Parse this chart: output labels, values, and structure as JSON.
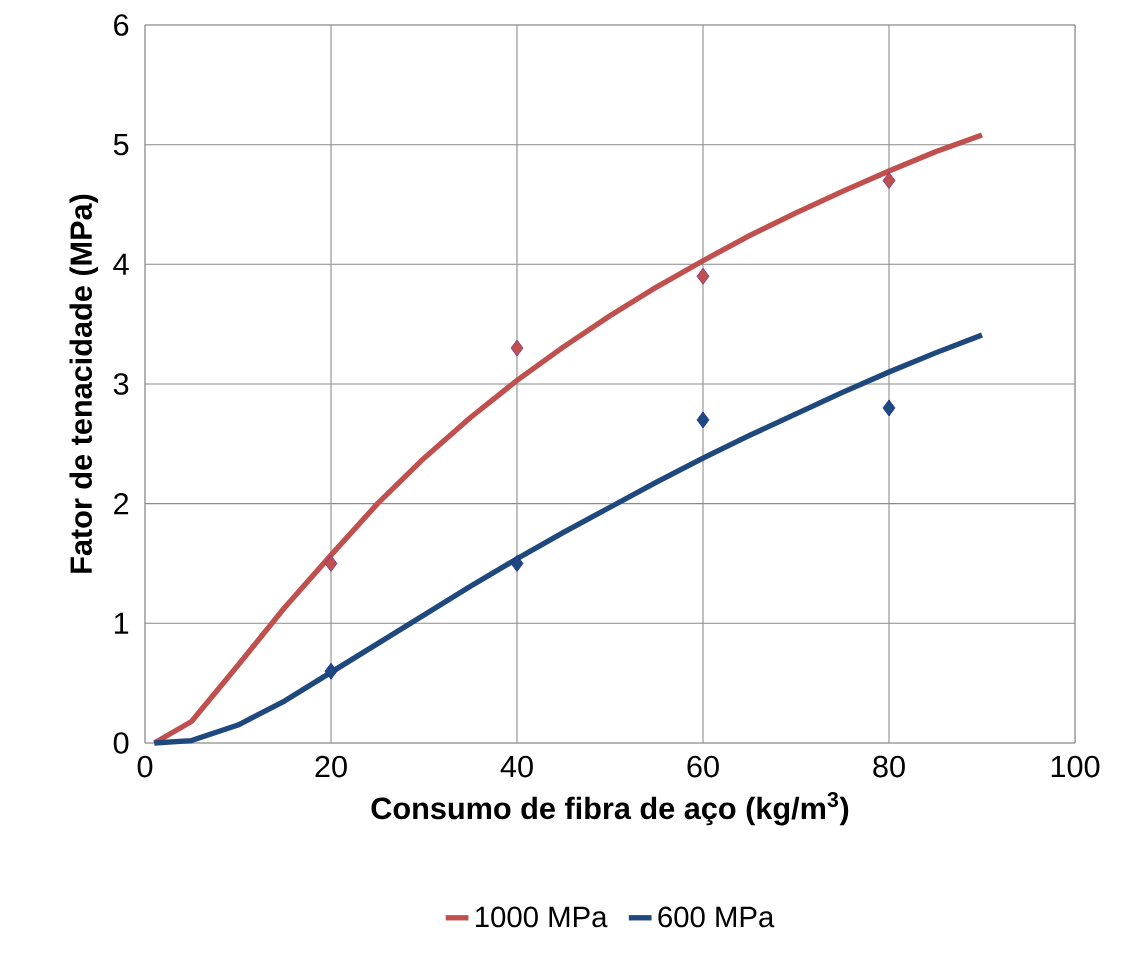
{
  "chart_data": {
    "type": "line",
    "xlabel": "Consumo de fibra de aço (kg/m$^{3}$)",
    "ylabel": "Fator de tenacidade (MPa)",
    "xlim": [
      0,
      100
    ],
    "xticks": [
      0,
      20,
      40,
      60,
      80,
      100
    ],
    "ylim": [
      0,
      6
    ],
    "yticks": [
      0,
      1,
      2,
      3,
      4,
      5,
      6
    ],
    "grid": true,
    "legend": "bottom",
    "line_style": "solid",
    "series": [
      {
        "name": "1000 MPa",
        "color": "#c0504d",
        "marker": "none",
        "x": [
          1,
          5,
          10,
          15,
          20,
          25,
          30,
          35,
          40,
          45,
          50,
          55,
          60,
          65,
          70,
          75,
          80,
          85,
          90
        ],
        "values": [
          0,
          0.18,
          0.65,
          1.13,
          1.57,
          2.0,
          2.38,
          2.72,
          3.03,
          3.31,
          3.57,
          3.81,
          4.03,
          4.24,
          4.43,
          4.61,
          4.78,
          4.94,
          5.08
        ]
      },
      {
        "name": "600 MPa",
        "color": "#1f497d",
        "marker": "none",
        "x": [
          1,
          5,
          10,
          15,
          20,
          25,
          30,
          35,
          40,
          45,
          50,
          55,
          60,
          65,
          70,
          75,
          80,
          85,
          90
        ],
        "values": [
          0,
          0.02,
          0.15,
          0.35,
          0.59,
          0.83,
          1.07,
          1.31,
          1.54,
          1.76,
          1.97,
          2.18,
          2.38,
          2.57,
          2.75,
          2.93,
          3.1,
          3.26,
          3.41
        ]
      },
      {
        "type": "scatter",
        "color": "#c0504d",
        "marker": "diamond",
        "x": [
          20,
          40,
          60,
          80
        ],
        "values": [
          1.5,
          3.3,
          3.9,
          4.7
        ]
      },
      {
        "type": "scatter",
        "color": "#1f497d",
        "marker": "diamond",
        "x": [
          20,
          40,
          60,
          80
        ],
        "values": [
          0.6,
          1.5,
          2.7,
          2.8
        ]
      }
    ]
  }
}
